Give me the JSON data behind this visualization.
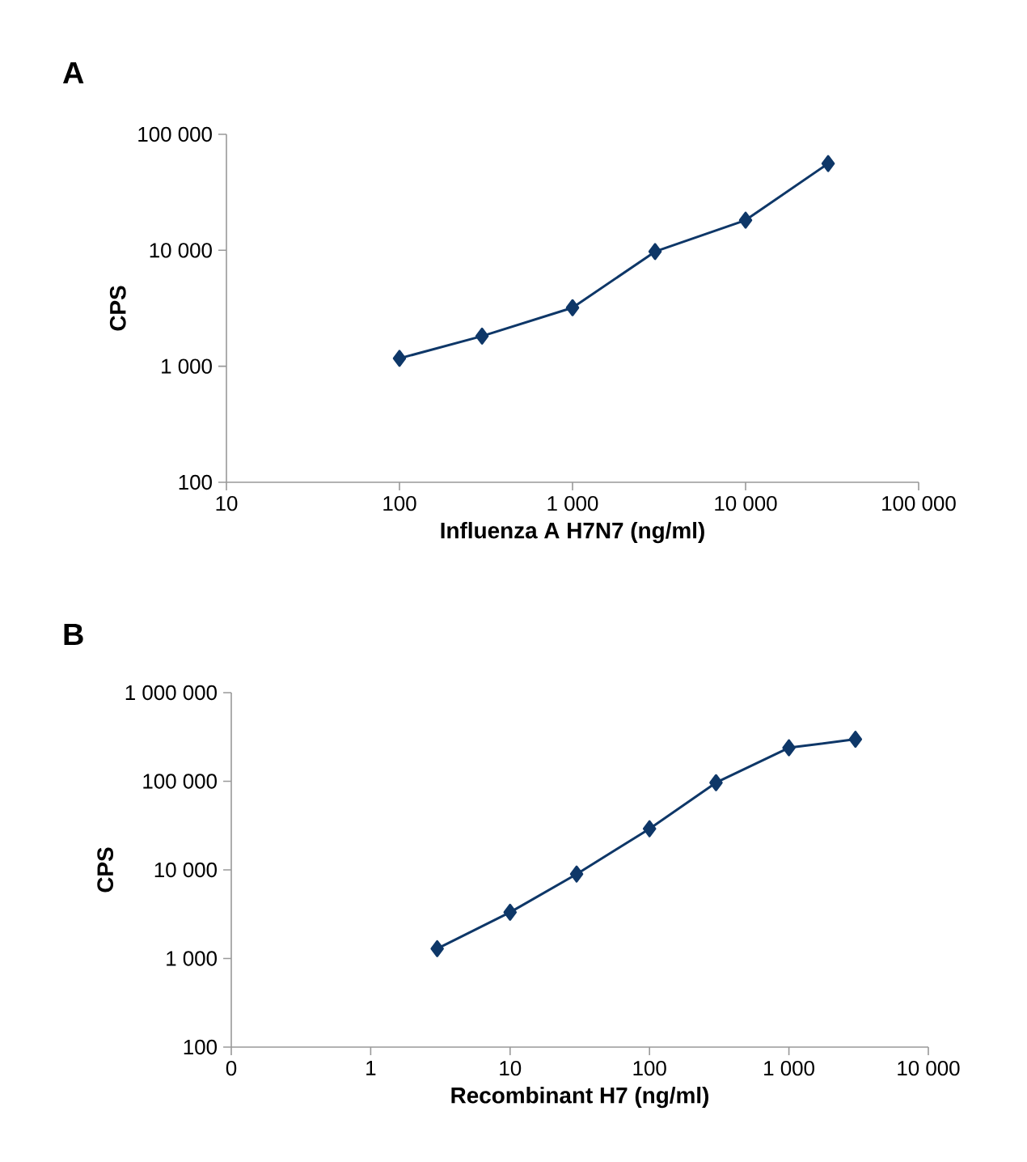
{
  "chart_data": [
    {
      "type": "line",
      "title": "A",
      "xlabel": "Influenza A H7N7 (ng/ml)",
      "ylabel": "CPS",
      "log": "xy",
      "marker": "diamond",
      "line_style": "solid",
      "grid": false,
      "x": [
        100,
        300,
        1000,
        3000,
        10000,
        30000
      ],
      "series": [
        {
          "color": "#0e3768",
          "values": [
            1170,
            1820,
            3200,
            9750,
            18200,
            56000
          ]
        }
      ],
      "xlim": [
        10,
        100000
      ],
      "ylim": [
        100,
        100000
      ],
      "xticks": [
        10,
        100,
        {
          "value": 1000,
          "label": "1 000"
        },
        {
          "value": 10000,
          "label": "10 000"
        },
        {
          "value": 100000,
          "label": "100 000"
        }
      ],
      "yticks": [
        100,
        {
          "value": 1000,
          "label": "1 000"
        },
        {
          "value": 10000,
          "label": "10 000"
        },
        {
          "value": 100000,
          "label": "100 000"
        }
      ]
    },
    {
      "type": "line",
      "title": "B",
      "xlabel": "Recombinant H7 (ng/ml)",
      "ylabel": "CPS",
      "log": "xy",
      "marker": "diamond",
      "line_style": "solid",
      "grid": false,
      "x": [
        3,
        10,
        30,
        100,
        300,
        1000,
        3000
      ],
      "series": [
        {
          "color": "#0e3768",
          "values": [
            1290,
            3320,
            8960,
            29100,
            96400,
            239000,
            298000
          ]
        }
      ],
      "xlim": [
        0.1,
        10000
      ],
      "ylim": [
        100,
        1000000
      ],
      "xticks": [
        {
          "value": 0.1,
          "label": "0"
        },
        1,
        10,
        100,
        {
          "value": 1000,
          "label": "1 000"
        },
        {
          "value": 10000,
          "label": "10 000"
        }
      ],
      "yticks": [
        100,
        {
          "value": 1000,
          "label": "1 000"
        },
        {
          "value": 10000,
          "label": "10 000"
        },
        {
          "value": 100000,
          "label": "100 000"
        },
        {
          "value": 1000000,
          "label": "1 000 000"
        }
      ]
    }
  ]
}
